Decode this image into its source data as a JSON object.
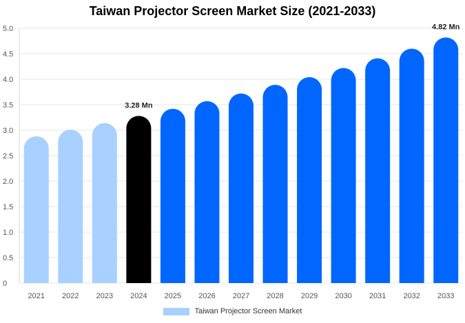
{
  "chart_data": {
    "type": "bar",
    "title": "Taiwan Projector Screen Market Size (2021-2033)",
    "xlabel": "",
    "ylabel": "",
    "categories": [
      "2021",
      "2022",
      "2023",
      "2024",
      "2025",
      "2026",
      "2027",
      "2028",
      "2029",
      "2030",
      "2031",
      "2032",
      "2033"
    ],
    "series": [
      {
        "name": "Taiwan Projector Screen Market",
        "values": [
          2.88,
          3.01,
          3.14,
          3.28,
          3.42,
          3.57,
          3.72,
          3.89,
          4.04,
          4.22,
          4.41,
          4.6,
          4.82
        ]
      }
    ],
    "ylim": [
      0,
      5
    ],
    "yticks": [
      "0",
      "0.5",
      "1.0",
      "1.5",
      "2.0",
      "2.5",
      "3.0",
      "3.5",
      "4.0",
      "4.5",
      "5.0"
    ],
    "annotations": [
      {
        "category": "2024",
        "text": "3.28 Mn"
      },
      {
        "category": "2033",
        "text": "4.82 Mn"
      }
    ],
    "grid": true,
    "legend_position": "bottom",
    "colors": {
      "historic": "#a8d1ff",
      "current": "#000000",
      "forecast": "#0066ff",
      "legend_swatch": "#a8d1ff",
      "grid": "#e6e6e6"
    }
  }
}
